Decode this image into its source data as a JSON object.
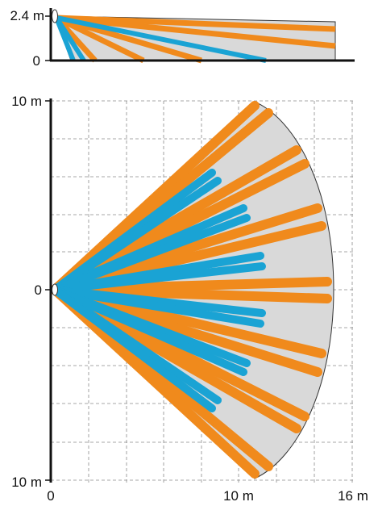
{
  "side_view": {
    "y_top_label": "2.4 m",
    "y_zero_label": "0"
  },
  "top_view": {
    "y_top_label": "10 m",
    "y_mid_label": "0",
    "y_bottom_label": "10 m",
    "x_labels": [
      "0",
      "10 m",
      "16 m"
    ]
  },
  "colors": {
    "far_beams": "#f08a1c",
    "near_beams": "#1aa3d4",
    "coverage_fill": "#d9d9d9",
    "grid": "#8a8a8a",
    "axis": "#111111"
  }
}
